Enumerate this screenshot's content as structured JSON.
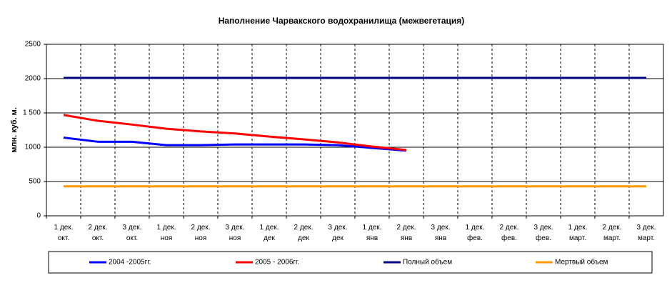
{
  "chart_data": {
    "type": "line",
    "title": "Наполнение Чарвакского водохранилища  (межвегетация)",
    "y_label": "млн. куб. м.",
    "categories": [
      "1 дек.\nокт.",
      "2 дек.\nокт.",
      "3 дек.\nокт.",
      "1 дек.\nноя",
      "2 дек.\nноя",
      "3 дек.\nноя",
      "1 дек.\nдек",
      "2 дек.\nдек",
      "3 дек.\nдек",
      "1 дек.\nянв",
      "2 дек.\nянв",
      "3 дек.\nянв",
      "1 дек.\nфев.",
      "2 дек.\nфев.",
      "3 дек.\nфев.",
      "1 дек.\nмарт.",
      "2 дек.\nмарт.",
      "3 дек.\nмарт."
    ],
    "series": [
      {
        "name": "2004 -2005гг.",
        "color": "#0000ff",
        "values": [
          1140,
          1080,
          1080,
          1030,
          1030,
          1040,
          1040,
          1040,
          1030,
          990,
          950,
          null,
          null,
          null,
          null,
          null,
          null,
          null
        ]
      },
      {
        "name": "2005 - 2006гг.",
        "color": "#ff0000",
        "values": [
          1470,
          1385,
          1330,
          1270,
          1230,
          1200,
          1155,
          1115,
          1070,
          1010,
          960,
          null,
          null,
          null,
          null,
          null,
          null,
          null
        ]
      },
      {
        "name": "Полный объем",
        "color": "#000080",
        "values": [
          2010,
          2010,
          2010,
          2010,
          2010,
          2010,
          2010,
          2010,
          2010,
          2010,
          2010,
          2010,
          2010,
          2010,
          2010,
          2010,
          2010,
          2010
        ]
      },
      {
        "name": "Мертвый объем",
        "color": "#ff9900",
        "values": [
          430,
          430,
          430,
          430,
          430,
          430,
          430,
          430,
          430,
          430,
          430,
          430,
          430,
          430,
          430,
          430,
          430,
          430
        ]
      }
    ],
    "ylim": [
      0,
      2500
    ],
    "yticks": [
      0,
      500,
      {
        "value": 1000,
        "label": "1000"
      },
      {
        "value": 1500,
        "label": "1 500"
      },
      2000,
      2500
    ],
    "grid": true
  }
}
